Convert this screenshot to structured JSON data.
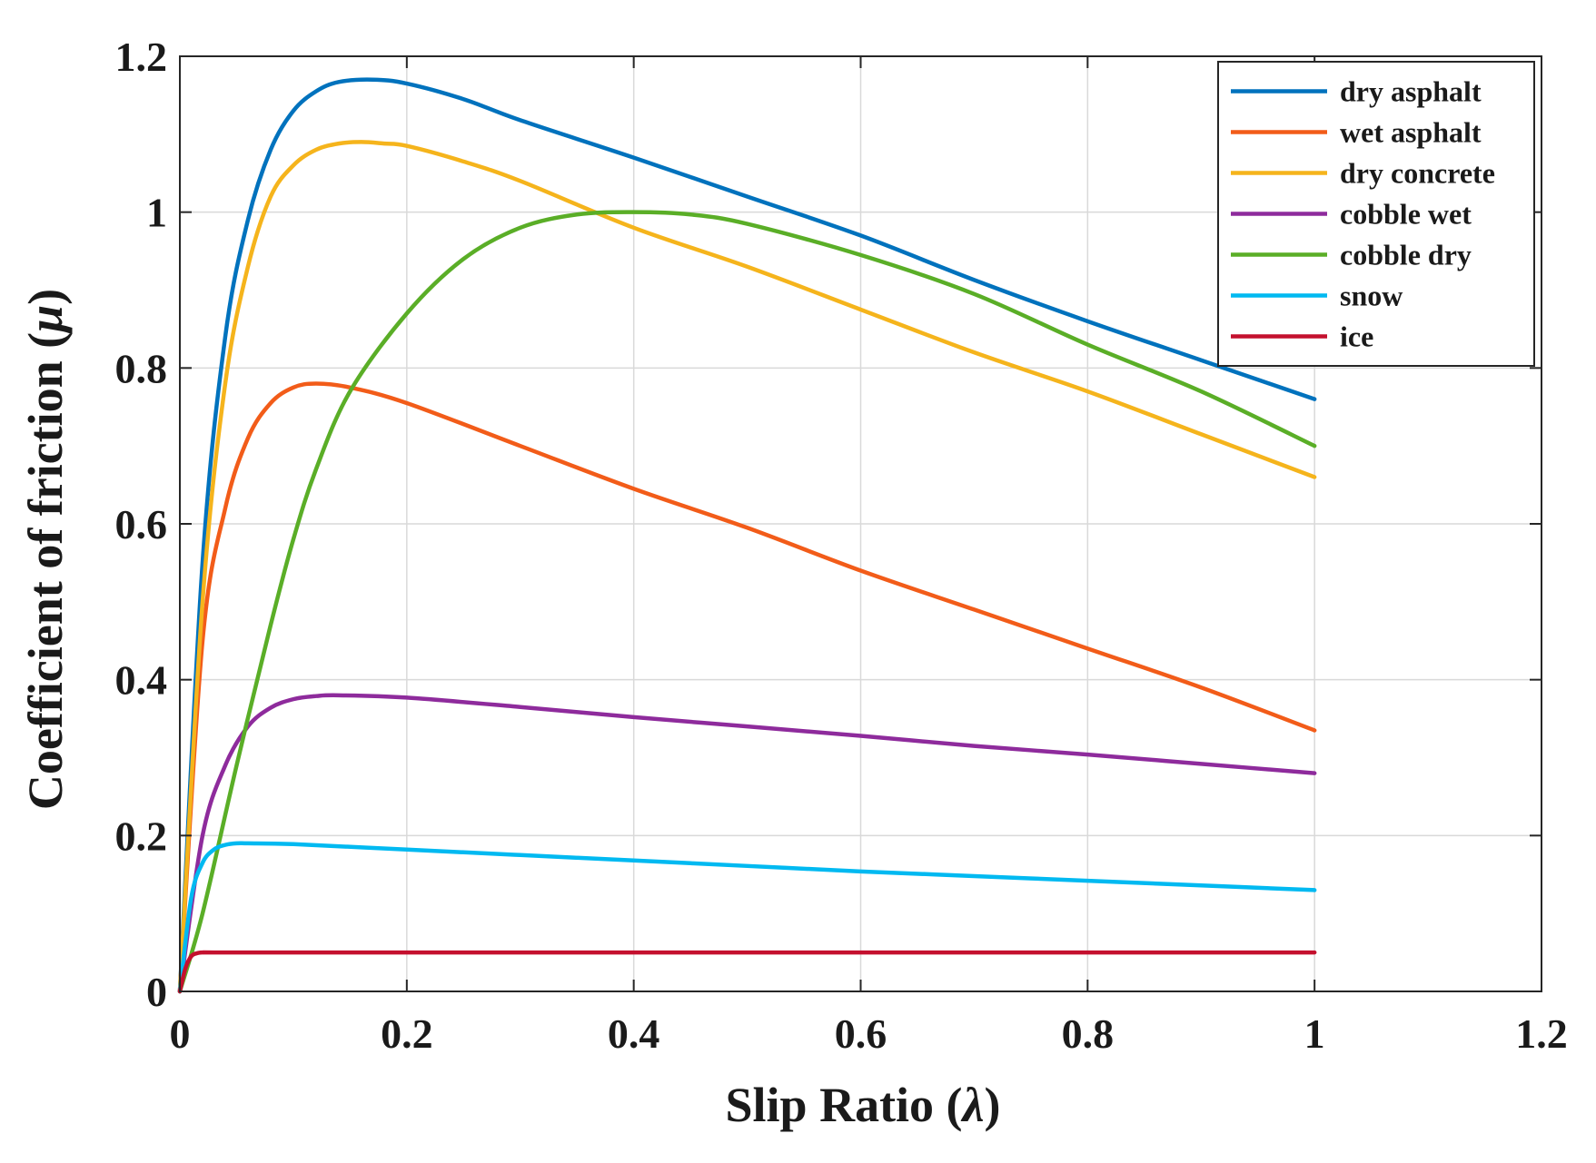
{
  "chart_data": {
    "type": "line",
    "title": "",
    "xlabel_text": "Slip Ratio (",
    "xlabel_symbol": "λ",
    "xlabel_close": ")",
    "ylabel_text": "Coefficient of friction (",
    "ylabel_symbol": "μ",
    "ylabel_close": ")",
    "xlim": [
      0,
      1.2
    ],
    "ylim": [
      0,
      1.2
    ],
    "xticks": [
      0,
      0.2,
      0.4,
      0.6,
      0.8,
      1,
      1.2
    ],
    "xtick_labels": [
      "0",
      "0.2",
      "0.4",
      "0.6",
      "0.8",
      "1",
      "1.2"
    ],
    "yticks": [
      0,
      0.2,
      0.4,
      0.6,
      0.8,
      1,
      1.2
    ],
    "ytick_labels": [
      "0",
      "0.2",
      "0.4",
      "0.6",
      "0.8",
      "1",
      "1.2"
    ],
    "grid": true,
    "legend_position": "top-right",
    "series": [
      {
        "name": "dry asphalt",
        "color": "#0072BD",
        "x": [
          0,
          0.02,
          0.04,
          0.06,
          0.08,
          0.1,
          0.12,
          0.14,
          0.17,
          0.2,
          0.25,
          0.3,
          0.4,
          0.5,
          0.6,
          0.7,
          0.8,
          0.9,
          1.0
        ],
        "y": [
          0,
          0.55,
          0.84,
          0.99,
          1.08,
          1.13,
          1.155,
          1.167,
          1.17,
          1.165,
          1.145,
          1.118,
          1.07,
          1.02,
          0.97,
          0.913,
          0.86,
          0.81,
          0.76
        ]
      },
      {
        "name": "wet asphalt",
        "color": "#F25C19",
        "x": [
          0,
          0.02,
          0.04,
          0.06,
          0.08,
          0.1,
          0.12,
          0.15,
          0.2,
          0.3,
          0.4,
          0.5,
          0.6,
          0.7,
          0.8,
          0.9,
          1.0
        ],
        "y": [
          0,
          0.45,
          0.62,
          0.71,
          0.755,
          0.775,
          0.78,
          0.775,
          0.755,
          0.7,
          0.645,
          0.595,
          0.54,
          0.49,
          0.44,
          0.39,
          0.335
        ]
      },
      {
        "name": "dry concrete",
        "color": "#F5B41C",
        "x": [
          0,
          0.02,
          0.04,
          0.06,
          0.08,
          0.1,
          0.12,
          0.14,
          0.16,
          0.18,
          0.2,
          0.25,
          0.3,
          0.4,
          0.5,
          0.6,
          0.7,
          0.8,
          0.9,
          1.0
        ],
        "y": [
          0,
          0.5,
          0.78,
          0.93,
          1.02,
          1.06,
          1.08,
          1.088,
          1.09,
          1.088,
          1.085,
          1.065,
          1.04,
          0.98,
          0.93,
          0.875,
          0.82,
          0.77,
          0.715,
          0.66
        ]
      },
      {
        "name": "cobble wet",
        "color": "#8E2B9C",
        "x": [
          0,
          0.02,
          0.04,
          0.06,
          0.08,
          0.1,
          0.12,
          0.14,
          0.2,
          0.3,
          0.4,
          0.5,
          0.6,
          0.7,
          0.8,
          0.9,
          1.0
        ],
        "y": [
          0,
          0.2,
          0.29,
          0.34,
          0.364,
          0.375,
          0.379,
          0.38,
          0.377,
          0.365,
          0.352,
          0.34,
          0.328,
          0.315,
          0.304,
          0.292,
          0.28
        ]
      },
      {
        "name": "cobble dry",
        "color": "#5AAE27",
        "x": [
          0,
          0.02,
          0.05,
          0.08,
          0.1,
          0.12,
          0.15,
          0.2,
          0.25,
          0.3,
          0.35,
          0.4,
          0.45,
          0.5,
          0.6,
          0.7,
          0.8,
          0.9,
          1.0
        ],
        "y": [
          0,
          0.1,
          0.29,
          0.47,
          0.58,
          0.67,
          0.77,
          0.87,
          0.94,
          0.98,
          0.997,
          1.0,
          0.997,
          0.985,
          0.945,
          0.895,
          0.83,
          0.77,
          0.7
        ]
      },
      {
        "name": "snow",
        "color": "#00B9F1",
        "x": [
          0,
          0.01,
          0.02,
          0.03,
          0.04,
          0.05,
          0.06,
          0.1,
          0.2,
          0.3,
          0.4,
          0.5,
          0.6,
          0.7,
          0.8,
          0.9,
          1.0
        ],
        "y": [
          0,
          0.12,
          0.165,
          0.182,
          0.188,
          0.19,
          0.19,
          0.189,
          0.182,
          0.175,
          0.168,
          0.161,
          0.154,
          0.148,
          0.142,
          0.136,
          0.13
        ]
      },
      {
        "name": "ice",
        "color": "#C4102E",
        "x": [
          0,
          0.005,
          0.01,
          0.015,
          0.02,
          0.03,
          0.1,
          0.3,
          0.5,
          0.7,
          1.0
        ],
        "y": [
          0,
          0.03,
          0.045,
          0.049,
          0.05,
          0.05,
          0.05,
          0.05,
          0.05,
          0.05,
          0.05
        ]
      }
    ]
  }
}
